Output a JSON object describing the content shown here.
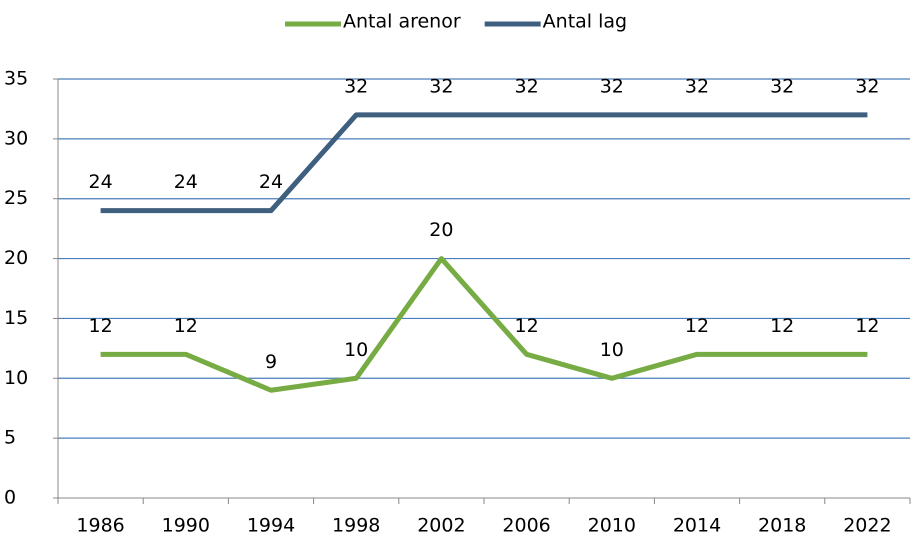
{
  "chart_data": {
    "type": "line",
    "categories": [
      "1986",
      "1990",
      "1994",
      "1998",
      "2002",
      "2006",
      "2010",
      "2014",
      "2018",
      "2022"
    ],
    "series": [
      {
        "name": "Antal arenor",
        "color": "#77ab43",
        "values": [
          12,
          12,
          9,
          10,
          20,
          12,
          10,
          12,
          12,
          12
        ]
      },
      {
        "name": "Antal lag",
        "color": "#3f5f7f",
        "values": [
          24,
          24,
          24,
          32,
          32,
          32,
          32,
          32,
          32,
          32
        ]
      }
    ],
    "ylim": [
      0,
      35
    ],
    "yticks": [
      0,
      5,
      10,
      15,
      20,
      25,
      30,
      35
    ],
    "grid": true,
    "legend": "top",
    "data_labels": true
  }
}
